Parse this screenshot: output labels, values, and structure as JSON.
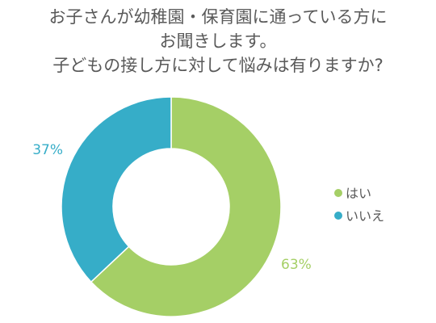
{
  "chart_data": {
    "type": "pie",
    "donut": true,
    "title_lines": [
      "お子さんが幼稚園・保育園に通っている方に",
      "お聞きします。",
      "子どもの接し方に対して悩みは有りますか?"
    ],
    "categories": [
      "はい",
      "いいえ"
    ],
    "values": [
      63,
      37
    ],
    "labels": [
      "63%",
      "37%"
    ],
    "colors": [
      "#a5cf66",
      "#36adc8"
    ],
    "legend": "right"
  }
}
